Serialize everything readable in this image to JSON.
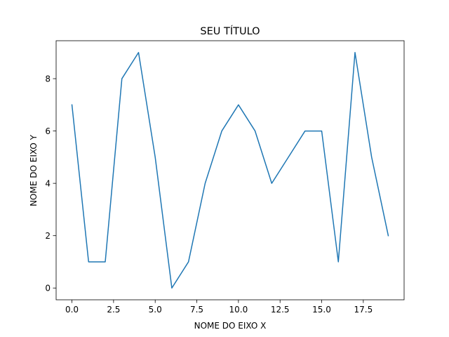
{
  "chart_data": {
    "type": "line",
    "title": "SEU TÍTULO",
    "xlabel": "NOME DO EIXO X",
    "ylabel": "NOME DO EIXO Y",
    "xlim": [
      -0.95,
      19.95
    ],
    "ylim": [
      -0.45,
      9.45
    ],
    "x_ticks": [
      "0.0",
      "2.5",
      "5.0",
      "7.5",
      "10.0",
      "12.5",
      "15.0",
      "17.5"
    ],
    "x_tick_values": [
      0,
      2.5,
      5,
      7.5,
      10,
      12.5,
      15,
      17.5
    ],
    "y_ticks": [
      "0",
      "2",
      "4",
      "6",
      "8"
    ],
    "y_tick_values": [
      0,
      2,
      4,
      6,
      8
    ],
    "grid": false,
    "series": [
      {
        "color": "#1f77b4",
        "x": [
          0,
          1,
          2,
          3,
          4,
          5,
          6,
          7,
          8,
          9,
          10,
          11,
          12,
          13,
          14,
          15,
          16,
          17,
          18,
          19
        ],
        "values": [
          7,
          1,
          1,
          8,
          9,
          5,
          0,
          1,
          4,
          6,
          7,
          6,
          4,
          5,
          6,
          6,
          1,
          9,
          5,
          2
        ]
      }
    ]
  }
}
